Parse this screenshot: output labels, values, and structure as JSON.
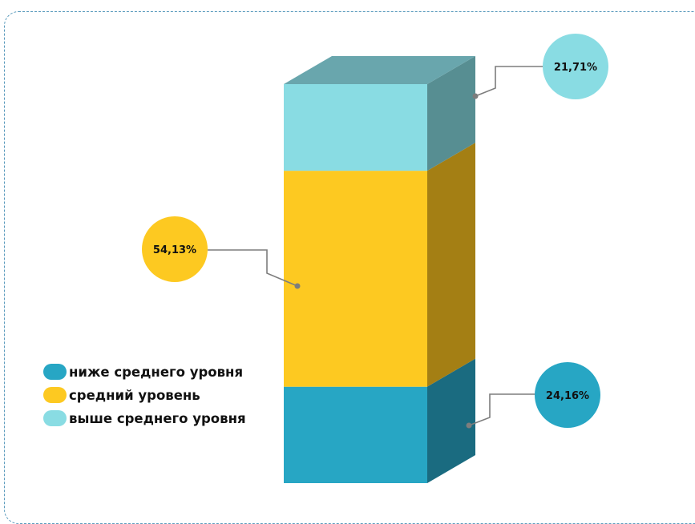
{
  "chart_data": {
    "type": "bar",
    "variant": "stacked-3d-single-column",
    "grid": false,
    "legend_position": "bottom-left",
    "series": [
      {
        "name": "ниже среднего уровня",
        "value": 24.16,
        "label": "24,16%",
        "color": "#27a6c4",
        "side_color": "#1a6b80"
      },
      {
        "name": "средний уровень",
        "value": 54.13,
        "label": "54,13%",
        "color": "#fdc921",
        "side_color": "#a47f14"
      },
      {
        "name": "выше среднего уровня",
        "value": 21.71,
        "label": "21,71%",
        "color": "#89dce3",
        "side_color": "#578e92",
        "top_color": "#69a6ad"
      }
    ]
  }
}
